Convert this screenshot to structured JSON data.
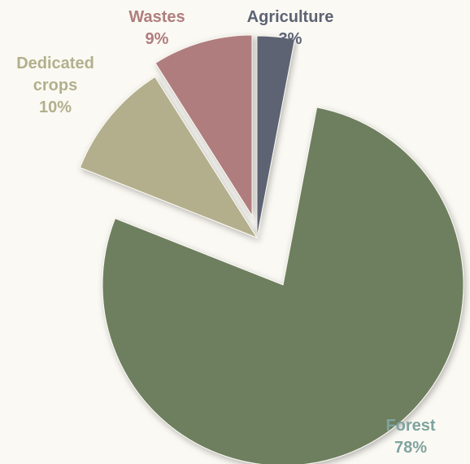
{
  "chart_data": {
    "type": "pie",
    "slices": [
      {
        "label_lines": [
          "Agriculture"
        ],
        "value": 3,
        "value_text": "3%",
        "color": "#5d6373"
      },
      {
        "label_lines": [
          "Forest"
        ],
        "value": 78,
        "value_text": "78%",
        "color": "#6d7f5f"
      },
      {
        "label_lines": [
          "Dedicated",
          "crops"
        ],
        "value": 10,
        "value_text": "10%",
        "color": "#b3af8d"
      },
      {
        "label_lines": [
          "Wastes"
        ],
        "value": 9,
        "value_text": "9%",
        "color": "#b07d7e"
      }
    ],
    "label_colors": {
      "Agriculture": "#5d6373",
      "Forest": "#7fa3a0",
      "Dedicated crops": "#b3af8d",
      "Wastes": "#b07d7e"
    },
    "exploded": true,
    "legend": "none"
  }
}
